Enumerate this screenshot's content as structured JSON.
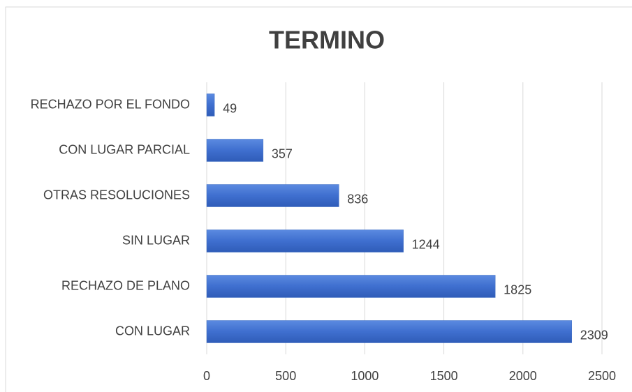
{
  "chart_data": {
    "type": "bar",
    "orientation": "horizontal",
    "title": "TERMINO",
    "categories": [
      "RECHAZO POR EL FONDO",
      "CON LUGAR PARCIAL",
      "OTRAS RESOLUCIONES",
      "SIN LUGAR",
      "RECHAZO DE PLANO",
      "CON LUGAR"
    ],
    "values": [
      49,
      357,
      836,
      1244,
      1825,
      2309
    ],
    "color": "#4472c4",
    "xlim": [
      0,
      2500
    ],
    "xticks": [
      0,
      500,
      1000,
      1500,
      2000,
      2500
    ],
    "grid": true
  }
}
